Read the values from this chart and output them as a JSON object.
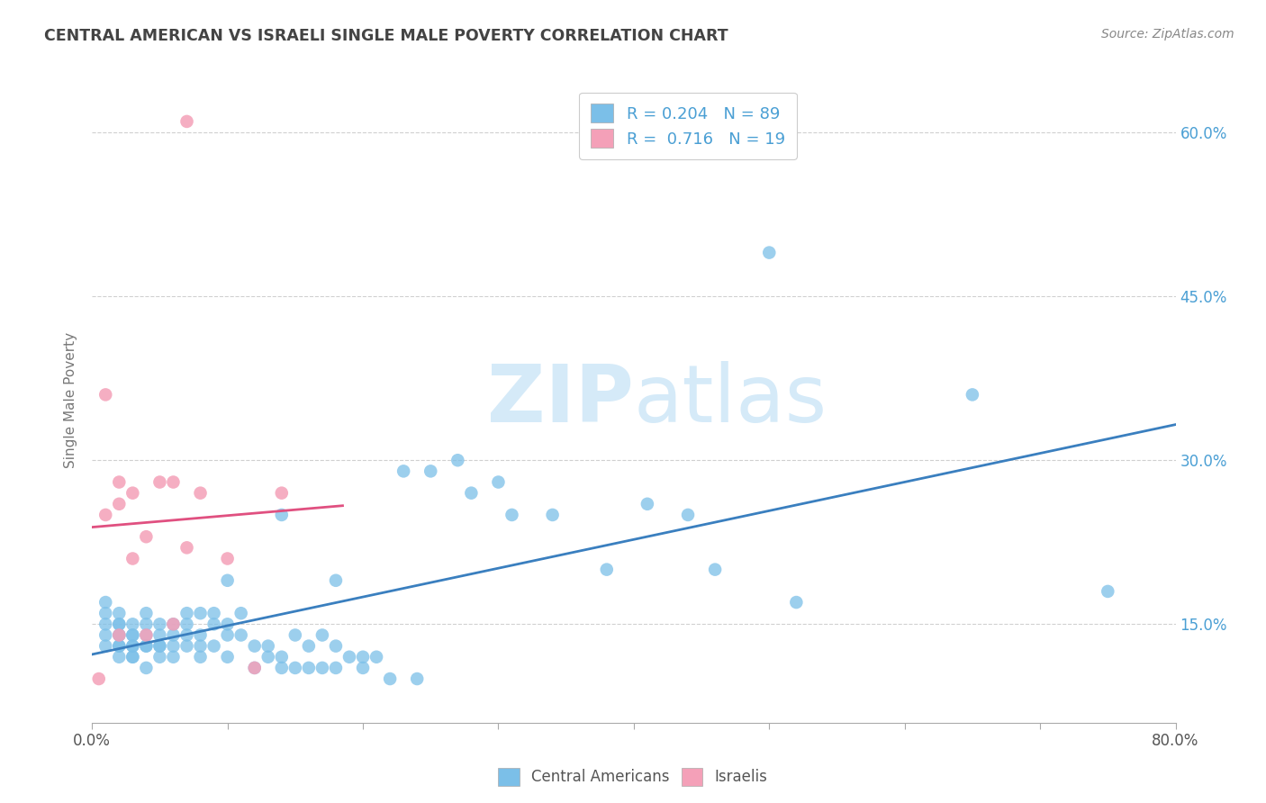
{
  "title": "CENTRAL AMERICAN VS ISRAELI SINGLE MALE POVERTY CORRELATION CHART",
  "source": "Source: ZipAtlas.com",
  "ylabel": "Single Male Poverty",
  "xlabel": "",
  "xmin": 0.0,
  "xmax": 0.8,
  "ymin": 0.06,
  "ymax": 0.65,
  "yticks": [
    0.15,
    0.3,
    0.45,
    0.6
  ],
  "ytick_labels": [
    "15.0%",
    "30.0%",
    "45.0%",
    "60.0%"
  ],
  "xticks": [
    0.0,
    0.1,
    0.2,
    0.3,
    0.4,
    0.5,
    0.6,
    0.7,
    0.8
  ],
  "xtick_labels": [
    "0.0%",
    "",
    "",
    "",
    "",
    "",
    "",
    "",
    "80.0%"
  ],
  "blue_R": 0.204,
  "blue_N": 89,
  "pink_R": 0.716,
  "pink_N": 19,
  "blue_color": "#7bbfe8",
  "pink_color": "#f4a0b8",
  "blue_line_color": "#3a7fbf",
  "pink_line_color": "#e05080",
  "title_color": "#444444",
  "axis_color": "#aaaaaa",
  "grid_color": "#d0d0d0",
  "tick_label_color": "#555555",
  "right_tick_color": "#4a9fd4",
  "watermark_color": "#d5eaf8",
  "blue_scatter_x": [
    0.01,
    0.01,
    0.01,
    0.01,
    0.01,
    0.02,
    0.02,
    0.02,
    0.02,
    0.02,
    0.02,
    0.02,
    0.02,
    0.03,
    0.03,
    0.03,
    0.03,
    0.03,
    0.03,
    0.03,
    0.04,
    0.04,
    0.04,
    0.04,
    0.04,
    0.04,
    0.05,
    0.05,
    0.05,
    0.05,
    0.05,
    0.06,
    0.06,
    0.06,
    0.06,
    0.07,
    0.07,
    0.07,
    0.07,
    0.08,
    0.08,
    0.08,
    0.08,
    0.09,
    0.09,
    0.09,
    0.1,
    0.1,
    0.1,
    0.1,
    0.11,
    0.11,
    0.12,
    0.12,
    0.13,
    0.13,
    0.14,
    0.14,
    0.14,
    0.15,
    0.15,
    0.16,
    0.16,
    0.17,
    0.17,
    0.18,
    0.18,
    0.18,
    0.19,
    0.2,
    0.2,
    0.21,
    0.22,
    0.23,
    0.24,
    0.25,
    0.27,
    0.28,
    0.3,
    0.31,
    0.34,
    0.38,
    0.41,
    0.44,
    0.46,
    0.5,
    0.52,
    0.65,
    0.75
  ],
  "blue_scatter_y": [
    0.13,
    0.14,
    0.15,
    0.16,
    0.17,
    0.12,
    0.13,
    0.14,
    0.15,
    0.16,
    0.13,
    0.14,
    0.15,
    0.12,
    0.13,
    0.14,
    0.15,
    0.13,
    0.14,
    0.12,
    0.11,
    0.13,
    0.14,
    0.15,
    0.16,
    0.13,
    0.12,
    0.13,
    0.14,
    0.15,
    0.13,
    0.12,
    0.14,
    0.15,
    0.13,
    0.13,
    0.14,
    0.15,
    0.16,
    0.12,
    0.13,
    0.14,
    0.16,
    0.13,
    0.15,
    0.16,
    0.12,
    0.14,
    0.15,
    0.19,
    0.14,
    0.16,
    0.11,
    0.13,
    0.12,
    0.13,
    0.11,
    0.12,
    0.25,
    0.11,
    0.14,
    0.11,
    0.13,
    0.11,
    0.14,
    0.11,
    0.13,
    0.19,
    0.12,
    0.11,
    0.12,
    0.12,
    0.1,
    0.29,
    0.1,
    0.29,
    0.3,
    0.27,
    0.28,
    0.25,
    0.25,
    0.2,
    0.26,
    0.25,
    0.2,
    0.49,
    0.17,
    0.36,
    0.18
  ],
  "pink_scatter_x": [
    0.005,
    0.01,
    0.01,
    0.02,
    0.02,
    0.02,
    0.03,
    0.03,
    0.04,
    0.04,
    0.05,
    0.06,
    0.06,
    0.07,
    0.07,
    0.08,
    0.1,
    0.12,
    0.14
  ],
  "pink_scatter_y": [
    0.1,
    0.25,
    0.36,
    0.26,
    0.28,
    0.14,
    0.21,
    0.27,
    0.14,
    0.23,
    0.28,
    0.15,
    0.28,
    0.22,
    0.61,
    0.27,
    0.21,
    0.11,
    0.27
  ],
  "pink_line_xmin": -0.005,
  "pink_line_xmax": 0.185,
  "blue_line_xmin": 0.0,
  "blue_line_xmax": 0.8
}
